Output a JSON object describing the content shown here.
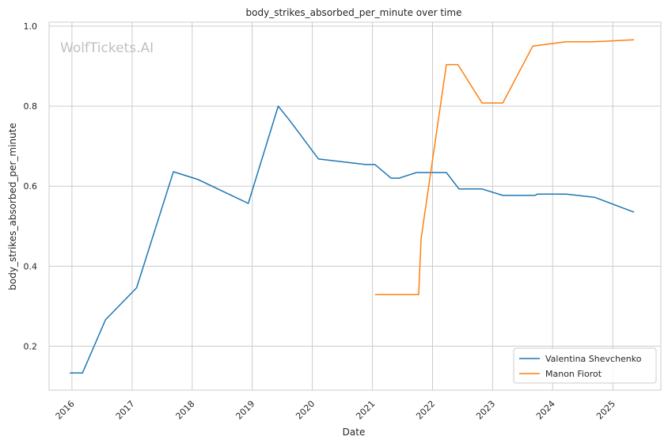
{
  "chart_data": {
    "type": "line",
    "title": "body_strikes_absorbed_per_minute over time",
    "xlabel": "Date",
    "ylabel": "body_strikes_absorbed_per_minute",
    "watermark": "WolfTickets.AI",
    "xlim": [
      "2015-08-15",
      "2025-10-20"
    ],
    "ylim": [
      0.09,
      1.01
    ],
    "x_ticks": [
      "2016",
      "2017",
      "2018",
      "2019",
      "2020",
      "2021",
      "2022",
      "2023",
      "2024",
      "2025"
    ],
    "y_ticks": [
      0.2,
      0.4,
      0.6,
      0.8,
      1.0
    ],
    "y_tick_labels": [
      "0.2",
      "0.4",
      "0.6",
      "0.8",
      "1.0"
    ],
    "grid": true,
    "legend_position": "bottom-right",
    "series": [
      {
        "name": "Valentina Shevchenko",
        "color": "#1f77b4",
        "points": [
          {
            "x": "2015-12-19",
            "y": 0.133
          },
          {
            "x": "2016-03-05",
            "y": 0.133
          },
          {
            "x": "2016-07-23",
            "y": 0.266
          },
          {
            "x": "2017-01-28",
            "y": 0.346
          },
          {
            "x": "2017-09-09",
            "y": 0.636
          },
          {
            "x": "2018-02-03",
            "y": 0.617
          },
          {
            "x": "2018-12-08",
            "y": 0.557
          },
          {
            "x": "2019-06-08",
            "y": 0.8
          },
          {
            "x": "2019-08-17",
            "y": 0.764
          },
          {
            "x": "2020-02-08",
            "y": 0.668
          },
          {
            "x": "2020-11-21",
            "y": 0.654
          },
          {
            "x": "2021-01-16",
            "y": 0.654
          },
          {
            "x": "2021-04-24",
            "y": 0.62
          },
          {
            "x": "2021-06-12",
            "y": 0.62
          },
          {
            "x": "2021-09-25",
            "y": 0.634
          },
          {
            "x": "2022-03-26",
            "y": 0.634
          },
          {
            "x": "2022-06-11",
            "y": 0.593
          },
          {
            "x": "2022-10-29",
            "y": 0.593
          },
          {
            "x": "2023-03-04",
            "y": 0.577
          },
          {
            "x": "2023-09-16",
            "y": 0.577
          },
          {
            "x": "2023-09-30",
            "y": 0.58
          },
          {
            "x": "2024-03-23",
            "y": 0.58
          },
          {
            "x": "2024-09-14",
            "y": 0.572
          },
          {
            "x": "2025-05-10",
            "y": 0.535
          }
        ]
      },
      {
        "name": "Manon Fiorot",
        "color": "#ff7f0e",
        "points": [
          {
            "x": "2021-01-16",
            "y": 0.329
          },
          {
            "x": "2021-10-09",
            "y": 0.329
          },
          {
            "x": "2021-10-23",
            "y": 0.468
          },
          {
            "x": "2022-03-26",
            "y": 0.904
          },
          {
            "x": "2022-06-04",
            "y": 0.904
          },
          {
            "x": "2022-10-29",
            "y": 0.808
          },
          {
            "x": "2023-03-04",
            "y": 0.808
          },
          {
            "x": "2023-09-02",
            "y": 0.95
          },
          {
            "x": "2024-03-23",
            "y": 0.961
          },
          {
            "x": "2024-09-07",
            "y": 0.961
          },
          {
            "x": "2025-05-10",
            "y": 0.966
          }
        ]
      }
    ]
  }
}
